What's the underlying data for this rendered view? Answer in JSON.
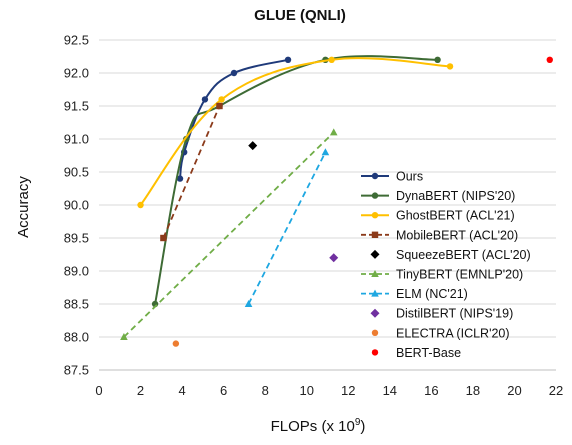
{
  "chart_data": {
    "type": "line",
    "title": "GLUE (QNLI)",
    "xlabel": "FLOPs (x 10",
    "xlabel_sup": "9",
    "xlabel_close": ")",
    "ylabel": "Accuracy",
    "xlim": [
      0,
      22
    ],
    "ylim": [
      87.5,
      92.5
    ],
    "x_ticks": [
      "0",
      "2",
      "4",
      "6",
      "8",
      "10",
      "12",
      "14",
      "16",
      "18",
      "20",
      "22"
    ],
    "y_ticks": [
      "87.5",
      "88.0",
      "88.5",
      "89.0",
      "89.5",
      "90.0",
      "90.5",
      "91.0",
      "91.5",
      "92.0",
      "92.5"
    ],
    "grid": "horizontal",
    "legend_position": "right",
    "series": [
      {
        "name": "Ours",
        "color": "#1f3a7a",
        "style": "smooth",
        "marker": "circle",
        "points": [
          [
            3.9,
            90.4
          ],
          [
            4.1,
            90.8
          ],
          [
            5.1,
            91.6
          ],
          [
            6.5,
            92.0
          ],
          [
            9.1,
            92.2
          ]
        ]
      },
      {
        "name": "DynaBERT (NIPS'20)",
        "color": "#3e6b35",
        "style": "smooth",
        "marker": "circle",
        "points": [
          [
            2.7,
            88.5
          ],
          [
            4.2,
            91.0
          ],
          [
            5.8,
            91.5
          ],
          [
            10.9,
            92.2
          ],
          [
            16.3,
            92.2
          ]
        ]
      },
      {
        "name": "GhostBERT (ACL'21)",
        "color": "#ffc000",
        "style": "smooth",
        "marker": "circle",
        "points": [
          [
            2.0,
            90.0
          ],
          [
            5.9,
            91.6
          ],
          [
            11.2,
            92.2
          ],
          [
            16.9,
            92.1
          ]
        ]
      },
      {
        "name": "MobileBERT (ACL'20)",
        "color": "#8b3a1a",
        "style": "dashed",
        "marker": "square",
        "points": [
          [
            3.1,
            89.5
          ],
          [
            5.8,
            91.5
          ]
        ]
      },
      {
        "name": "SqueezeBERT (ACL'20)",
        "color": "#000000",
        "style": "none",
        "marker": "diamond",
        "points": [
          [
            7.4,
            90.9
          ]
        ]
      },
      {
        "name": "TinyBERT (EMNLP'20)",
        "color": "#70ad47",
        "style": "dashed",
        "marker": "triangle",
        "points": [
          [
            1.2,
            88.0
          ],
          [
            11.3,
            91.1
          ]
        ]
      },
      {
        "name": "ELM (NC'21)",
        "color": "#1ea7e1",
        "style": "dashed",
        "marker": "triangle",
        "points": [
          [
            7.2,
            88.5
          ],
          [
            10.9,
            90.8
          ]
        ]
      },
      {
        "name": "DistilBERT (NIPS'19)",
        "color": "#7030a0",
        "style": "none",
        "marker": "diamond",
        "points": [
          [
            11.3,
            89.2
          ]
        ]
      },
      {
        "name": "ELECTRA (ICLR'20)",
        "color": "#ed7d31",
        "style": "none",
        "marker": "circle",
        "points": [
          [
            3.7,
            87.9
          ]
        ]
      },
      {
        "name": "BERT-Base",
        "color": "#ff0000",
        "style": "none",
        "marker": "circle",
        "points": [
          [
            21.7,
            92.2
          ]
        ]
      }
    ]
  }
}
